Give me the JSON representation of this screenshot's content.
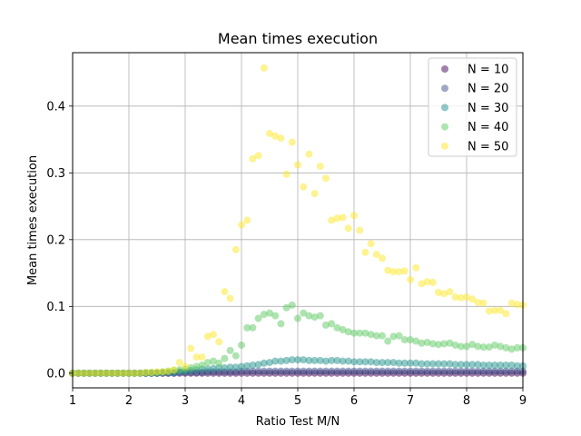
{
  "chart_data": {
    "type": "scatter",
    "title": "Mean times execution",
    "xlabel": "Ratio Test M/N",
    "ylabel": "Mean times execution",
    "xlim": [
      1,
      9
    ],
    "ylim": [
      -0.022,
      0.48
    ],
    "xticks": [
      "1",
      "2",
      "3",
      "4",
      "5",
      "6",
      "7",
      "8",
      "9"
    ],
    "yticks": [
      "0.0",
      "0.1",
      "0.2",
      "0.3",
      "0.4"
    ],
    "grid": true,
    "legend_position": "top-right",
    "marker_alpha": 0.5,
    "x": [
      1.0,
      1.1,
      1.2,
      1.3,
      1.4,
      1.5,
      1.6,
      1.7,
      1.8,
      1.9,
      2.0,
      2.1,
      2.2,
      2.3,
      2.4,
      2.5,
      2.6,
      2.7,
      2.8,
      2.9,
      3.0,
      3.1,
      3.2,
      3.3,
      3.4,
      3.5,
      3.6,
      3.7,
      3.8,
      3.9,
      4.0,
      4.1,
      4.2,
      4.3,
      4.4,
      4.5,
      4.6,
      4.7,
      4.8,
      4.9,
      5.0,
      5.1,
      5.2,
      5.3,
      5.4,
      5.5,
      5.6,
      5.7,
      5.8,
      5.9,
      6.0,
      6.1,
      6.2,
      6.3,
      6.4,
      6.5,
      6.6,
      6.7,
      6.8,
      6.9,
      7.0,
      7.1,
      7.2,
      7.3,
      7.4,
      7.5,
      7.6,
      7.7,
      7.8,
      7.9,
      8.0,
      8.1,
      8.2,
      8.3,
      8.4,
      8.5,
      8.6,
      8.7,
      8.8,
      8.9,
      9.0
    ],
    "series": [
      {
        "name": "N = 10",
        "color": "#440154",
        "values": [
          0,
          0,
          0,
          0,
          0,
          0,
          0,
          0,
          0,
          0,
          0,
          0,
          0,
          0,
          0,
          0,
          0,
          0,
          0,
          0,
          0,
          0,
          0,
          0,
          0,
          0,
          0,
          0,
          0,
          0,
          0,
          0,
          0,
          0,
          0,
          0,
          0,
          0,
          0,
          0,
          0,
          0,
          0,
          0,
          0,
          0,
          0,
          0,
          0,
          0,
          0,
          0,
          0,
          0,
          0,
          0,
          0,
          0,
          0,
          0,
          0,
          0,
          0,
          0,
          0,
          0,
          0,
          0,
          0,
          0,
          0,
          0,
          0,
          0,
          0,
          0,
          0,
          0,
          0,
          0,
          0
        ]
      },
      {
        "name": "N = 20",
        "color": "#3b528b",
        "values": [
          0,
          0,
          0,
          0,
          0,
          0,
          0,
          0,
          0,
          0,
          0,
          0,
          0,
          0,
          0,
          0,
          0,
          0,
          0,
          0.001,
          0.001,
          0.001,
          0.001,
          0.001,
          0.002,
          0.002,
          0.002,
          0.002,
          0.002,
          0.002,
          0.003,
          0.003,
          0.003,
          0.003,
          0.003,
          0.003,
          0.003,
          0.003,
          0.003,
          0.003,
          0.003,
          0.003,
          0.003,
          0.003,
          0.003,
          0.003,
          0.003,
          0.003,
          0.003,
          0.003,
          0.003,
          0.003,
          0.003,
          0.003,
          0.003,
          0.003,
          0.003,
          0.003,
          0.003,
          0.003,
          0.003,
          0.003,
          0.003,
          0.003,
          0.003,
          0.003,
          0.003,
          0.003,
          0.003,
          0.003,
          0.003,
          0.003,
          0.003,
          0.003,
          0.003,
          0.003,
          0.003,
          0.003,
          0.003,
          0.003,
          0.003
        ]
      },
      {
        "name": "N = 30",
        "color": "#21918c",
        "values": [
          0,
          0,
          0,
          0,
          0,
          0,
          0,
          0,
          0,
          0,
          0,
          0,
          0,
          0,
          0,
          0,
          0.001,
          0.001,
          0.001,
          0.002,
          0.003,
          0.004,
          0.005,
          0.006,
          0.006,
          0.007,
          0.008,
          0.008,
          0.009,
          0.009,
          0.01,
          0.011,
          0.012,
          0.013,
          0.015,
          0.016,
          0.018,
          0.018,
          0.019,
          0.02,
          0.02,
          0.02,
          0.019,
          0.019,
          0.019,
          0.018,
          0.019,
          0.019,
          0.018,
          0.018,
          0.017,
          0.017,
          0.017,
          0.017,
          0.016,
          0.016,
          0.016,
          0.016,
          0.015,
          0.015,
          0.015,
          0.015,
          0.014,
          0.014,
          0.014,
          0.014,
          0.014,
          0.014,
          0.013,
          0.013,
          0.013,
          0.013,
          0.013,
          0.012,
          0.012,
          0.012,
          0.012,
          0.012,
          0.012,
          0.011,
          0.011
        ]
      },
      {
        "name": "N = 40",
        "color": "#5ec962",
        "values": [
          0,
          0,
          0,
          0,
          0,
          0,
          0,
          0,
          0,
          0,
          0,
          0,
          0,
          0.001,
          0.001,
          0.001,
          0.002,
          0.003,
          0.004,
          0.005,
          0.006,
          0.008,
          0.01,
          0.012,
          0.016,
          0.018,
          0.015,
          0.022,
          0.034,
          0.026,
          0.042,
          0.068,
          0.068,
          0.082,
          0.088,
          0.09,
          0.086,
          0.074,
          0.098,
          0.102,
          0.082,
          0.09,
          0.086,
          0.084,
          0.086,
          0.072,
          0.074,
          0.068,
          0.065,
          0.062,
          0.06,
          0.06,
          0.06,
          0.058,
          0.056,
          0.056,
          0.048,
          0.055,
          0.056,
          0.05,
          0.05,
          0.048,
          0.045,
          0.046,
          0.044,
          0.043,
          0.044,
          0.045,
          0.042,
          0.04,
          0.04,
          0.043,
          0.04,
          0.039,
          0.039,
          0.042,
          0.04,
          0.038,
          0.036,
          0.038,
          0.038
        ]
      },
      {
        "name": "N = 50",
        "color": "#fde725",
        "values": [
          0,
          0,
          0,
          0,
          0,
          0,
          0,
          0,
          0,
          0,
          0,
          0,
          0,
          0.001,
          0.001,
          0.002,
          0.002,
          0.003,
          0.005,
          0.016,
          0.01,
          0.037,
          0.024,
          0.024,
          0.055,
          0.058,
          0.047,
          0.122,
          0.112,
          0.185,
          0.222,
          0.229,
          0.321,
          0.326,
          0.457,
          0.359,
          0.355,
          0.352,
          0.298,
          0.346,
          0.312,
          0.279,
          0.328,
          0.269,
          0.31,
          0.292,
          0.229,
          0.232,
          0.233,
          0.217,
          0.236,
          0.214,
          0.181,
          0.194,
          0.178,
          0.172,
          0.154,
          0.152,
          0.152,
          0.153,
          0.14,
          0.158,
          0.134,
          0.137,
          0.136,
          0.121,
          0.119,
          0.122,
          0.114,
          0.113,
          0.114,
          0.111,
          0.106,
          0.105,
          0.093,
          0.094,
          0.094,
          0.089,
          0.105,
          0.103,
          0.102
        ]
      }
    ]
  }
}
